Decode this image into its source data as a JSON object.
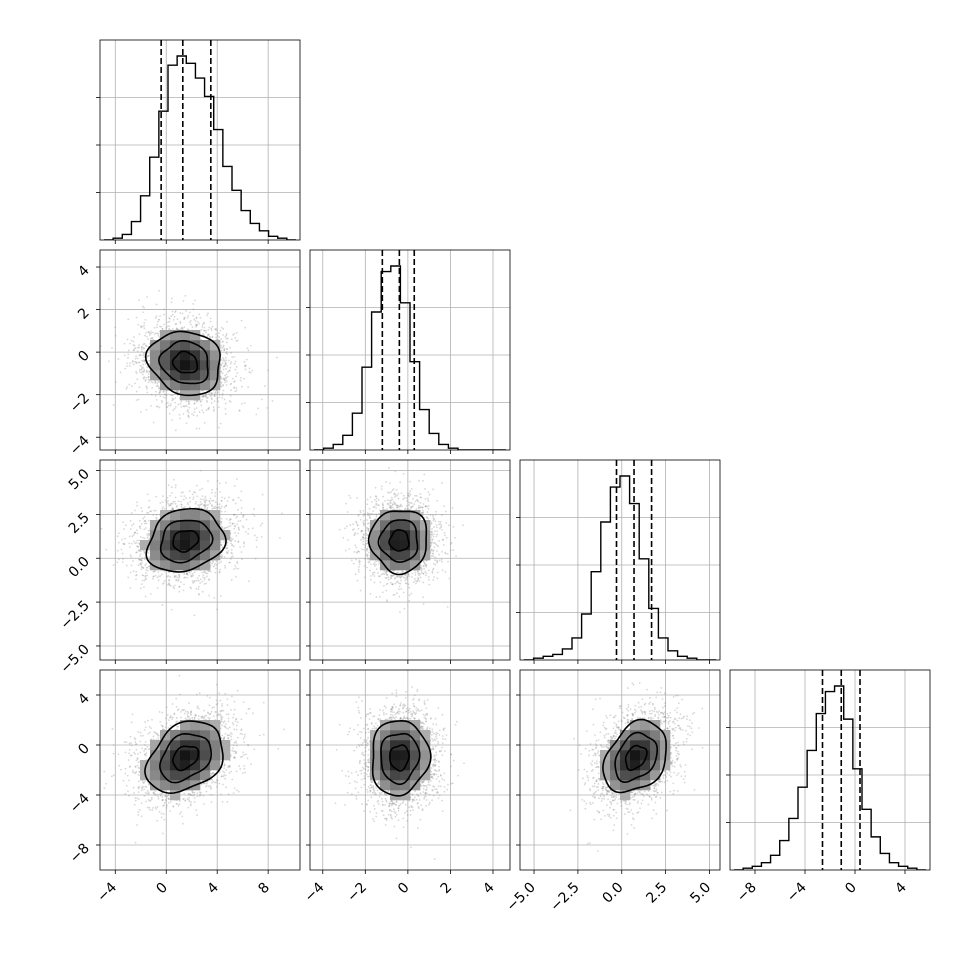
{
  "chart_data": {
    "type": "corner",
    "parameters": [
      {
        "range": [
          -5.2,
          10.5
        ],
        "ticks": [
          -4,
          0,
          4,
          8
        ],
        "tick_labels": [
          "−4",
          "0",
          "4",
          "8"
        ],
        "quantiles": [
          -0.4,
          1.3,
          3.5
        ],
        "hist": [
          0.0,
          0.01,
          0.03,
          0.1,
          0.24,
          0.45,
          0.7,
          0.95,
          1.0,
          0.96,
          0.88,
          0.78,
          0.6,
          0.4,
          0.27,
          0.16,
          0.09,
          0.05,
          0.02,
          0.01,
          0.0
        ]
      },
      {
        "range": [
          -4.6,
          4.8
        ],
        "ticks": [
          -4,
          -2,
          0,
          2,
          4
        ],
        "tick_labels": [
          "−4",
          "−2",
          "0",
          "2",
          "4"
        ],
        "quantiles": [
          -1.2,
          -0.4,
          0.3
        ],
        "hist": [
          0.0,
          0.01,
          0.03,
          0.08,
          0.2,
          0.45,
          0.75,
          0.97,
          1.0,
          0.8,
          0.48,
          0.22,
          0.09,
          0.03,
          0.01,
          0.0,
          0.0,
          0.0,
          0.0,
          0.0
        ]
      },
      {
        "range": [
          -5.8,
          5.6
        ],
        "ticks": [
          -5.0,
          -2.5,
          0.0,
          2.5,
          5.0
        ],
        "tick_labels": [
          "−5.0",
          "−2.5",
          "0.0",
          "2.5",
          "5.0"
        ],
        "quantiles": [
          -0.3,
          0.7,
          1.7
        ],
        "hist": [
          0.0,
          0.01,
          0.02,
          0.03,
          0.06,
          0.12,
          0.25,
          0.48,
          0.75,
          0.94,
          1.0,
          0.85,
          0.55,
          0.28,
          0.12,
          0.05,
          0.02,
          0.01,
          0.0,
          0.0
        ]
      },
      {
        "range": [
          -10.0,
          6.0
        ],
        "ticks": [
          -8,
          -4,
          0,
          4
        ],
        "tick_labels": [
          "−8",
          "−4",
          "0",
          "4"
        ],
        "quantiles": [
          -2.6,
          -1.1,
          0.4
        ],
        "hist": [
          0.0,
          0.01,
          0.02,
          0.04,
          0.08,
          0.16,
          0.28,
          0.45,
          0.65,
          0.85,
          0.97,
          1.0,
          0.82,
          0.55,
          0.33,
          0.18,
          0.09,
          0.04,
          0.02,
          0.01,
          0.0
        ]
      }
    ],
    "pairs": [
      {
        "row": 1,
        "col": 0,
        "center": [
          1.5,
          -0.5
        ],
        "sigma": [
          1.9,
          1.0
        ],
        "rho": -0.12
      },
      {
        "row": 2,
        "col": 0,
        "center": [
          1.5,
          1.0
        ],
        "sigma": [
          2.0,
          1.2
        ],
        "rho": 0.18
      },
      {
        "row": 2,
        "col": 1,
        "center": [
          -0.4,
          1.0
        ],
        "sigma": [
          0.9,
          1.2
        ],
        "rho": 0.0
      },
      {
        "row": 3,
        "col": 0,
        "center": [
          1.5,
          -1.0
        ],
        "sigma": [
          2.0,
          1.9
        ],
        "rho": 0.3
      },
      {
        "row": 3,
        "col": 1,
        "center": [
          -0.4,
          -1.0
        ],
        "sigma": [
          0.9,
          2.0
        ],
        "rho": 0.05
      },
      {
        "row": 3,
        "col": 2,
        "center": [
          0.8,
          -1.0
        ],
        "sigma": [
          1.2,
          1.9
        ],
        "rho": 0.3
      }
    ],
    "contour_levels": [
      0.5,
      1.0,
      1.5
    ],
    "grid": true,
    "axis_labels": []
  }
}
